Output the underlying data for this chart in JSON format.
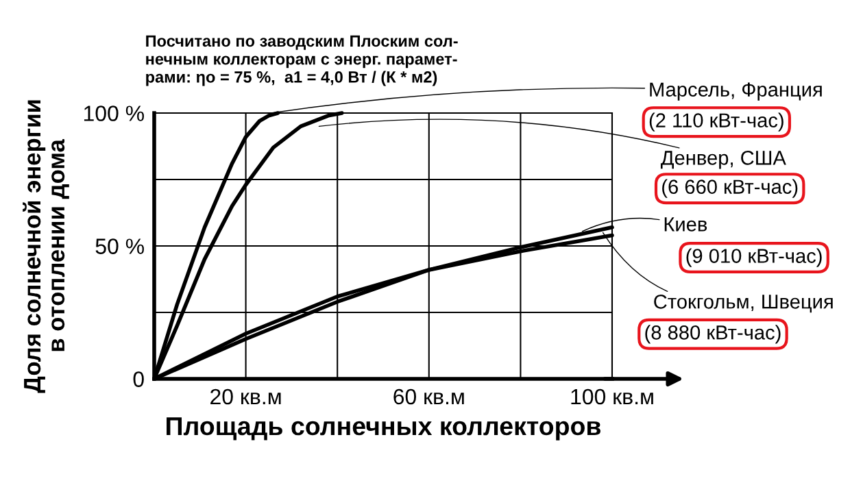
{
  "chart_data": {
    "type": "line",
    "title": "Посчитано по заводским Плоским сол-\nнечным коллекторам с энерг. парамет-\nрами: ηо = 75 %,  а1 = 4,0 Вт / (К * м2)",
    "xlabel": "Площадь солнечных коллекторов",
    "ylabel": "Доля солнечной энергии\nв отоплении дома",
    "series": [
      {
        "name": "Марсель, Франция",
        "color": "#000000",
        "x": [
          0,
          5,
          11,
          17,
          20,
          23,
          25,
          27
        ],
        "values": [
          0,
          28,
          57,
          81,
          91,
          97,
          99,
          100
        ]
      },
      {
        "name": "Денвер, США",
        "color": "#000000",
        "x": [
          0,
          5,
          11,
          17,
          20,
          26,
          32,
          38,
          41
        ],
        "values": [
          0,
          20,
          45,
          65,
          73,
          87,
          95,
          99,
          100
        ]
      },
      {
        "name": "Киев",
        "color": "#000000",
        "x": [
          0,
          20,
          40,
          60,
          80,
          100
        ],
        "values": [
          0,
          15,
          29,
          41,
          49.5,
          57
        ]
      },
      {
        "name": "Стокгольм, Швеция",
        "color": "#000000",
        "x": [
          0,
          20,
          40,
          60,
          80,
          100
        ],
        "values": [
          0,
          17,
          31,
          41,
          48,
          54
        ]
      }
    ],
    "annotations": [
      "(2 110 кВт-час)",
      "(6 660 кВт-час)",
      "(9 010 кВт-час)",
      "(8 880 кВт-час)"
    ],
    "xlim": [
      0,
      100
    ],
    "ylim": [
      0,
      100
    ],
    "xticks": [
      {
        "value": 20,
        "label": "20 кв.м"
      },
      {
        "value": 40,
        "label": null
      },
      {
        "value": 60,
        "label": "60 кв.м"
      },
      {
        "value": 80,
        "label": null
      },
      {
        "value": 100,
        "label": "100 кв.м"
      }
    ],
    "yticks": [
      {
        "value": 0,
        "label": "0"
      },
      {
        "value": 25,
        "label": null
      },
      {
        "value": 50,
        "label": "50 %"
      },
      {
        "value": 75,
        "label": null
      },
      {
        "value": 100,
        "label": "100 %"
      }
    ],
    "grid": true
  }
}
